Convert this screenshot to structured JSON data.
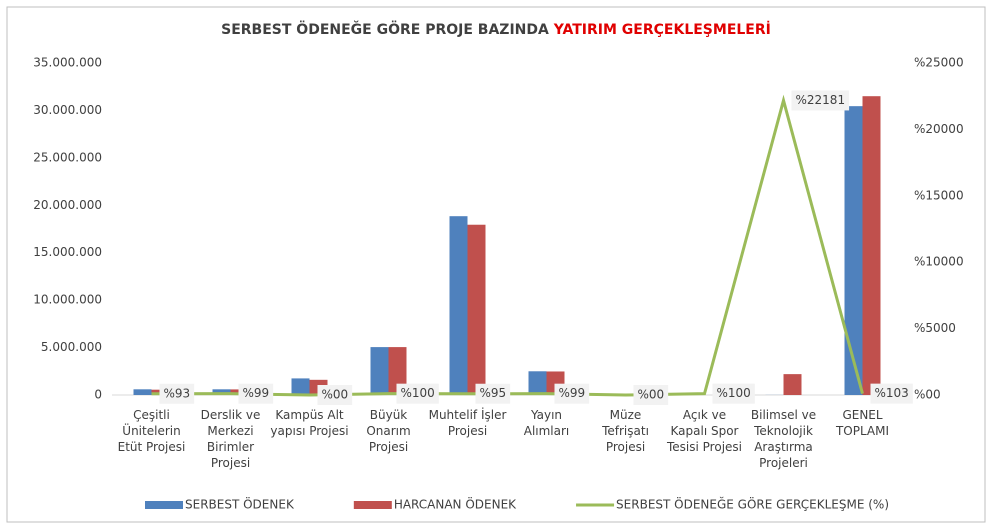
{
  "chart_data": {
    "type": "bar_line",
    "title": "SERBEST ÖDENEĞE GÖRE PROJE BAZINDA",
    "title_highlight": "YATIRIM GERÇEKLEŞMELERİ",
    "categories": [
      "Çeşitli Ünitelerin Etüt Projesi",
      "Derslik ve Merkezi Birimler Projesi",
      "Kampüs Alt yapısı Projesi",
      "Büyük Onarım Projesi",
      "Muhtelif İşler Projesi",
      "Yayın Alımları",
      "Müze Tefrişatı Projesi",
      "Açık ve Kapalı Spor Tesisi Projesi",
      "Bilimsel ve Teknolojik Araştırma Projeleri",
      "GENEL TOPLAMI"
    ],
    "series": [
      {
        "name": "SERBEST ÖDENEK",
        "color": "#4f81bd",
        "type": "bar",
        "values": [
          600000,
          600000,
          1750000,
          5050000,
          18850000,
          2500000,
          0,
          0,
          10000,
          30450000
        ]
      },
      {
        "name": "HARCANAN ÖDENEK",
        "color": "#c0504d",
        "type": "bar",
        "values": [
          560000,
          590000,
          1600000,
          5050000,
          17950000,
          2480000,
          0,
          0,
          2200000,
          31500000
        ]
      },
      {
        "name": "SERBEST ÖDENEĞE GÖRE GERÇEKLEŞME (%)",
        "color": "#9bbb59",
        "type": "line",
        "axis": "y2",
        "values": [
          93,
          99,
          0,
          100,
          95,
          99,
          0,
          100,
          22181,
          103
        ],
        "value_labels": [
          "%93",
          "%99",
          "%00",
          "%100",
          "%95",
          "%99",
          "%00",
          "%100",
          "%22181",
          "%103"
        ]
      }
    ],
    "ylim": [
      0,
      35000000
    ],
    "yticks": [
      0,
      {
        "value": 5000000,
        "label": "5.000.000"
      },
      {
        "value": 10000000,
        "label": "10.000.000"
      },
      {
        "value": 15000000,
        "label": "15.000.000"
      },
      {
        "value": 20000000,
        "label": "20.000.000"
      },
      {
        "value": 25000000,
        "label": "25.000.000"
      },
      {
        "value": 30000000,
        "label": "30.000.000"
      },
      {
        "value": 35000000,
        "label": "35.000.000"
      }
    ],
    "y2lim": [
      0,
      25000
    ],
    "y2ticks": [
      {
        "value": 0,
        "label": "%00"
      },
      {
        "value": 5000,
        "label": "%5000"
      },
      {
        "value": 10000,
        "label": "%10000"
      },
      {
        "value": 15000,
        "label": "%15000"
      },
      {
        "value": 20000,
        "label": "%20000"
      },
      {
        "value": 25000,
        "label": "%25000"
      }
    ],
    "grid": false,
    "legend": "bottom"
  }
}
